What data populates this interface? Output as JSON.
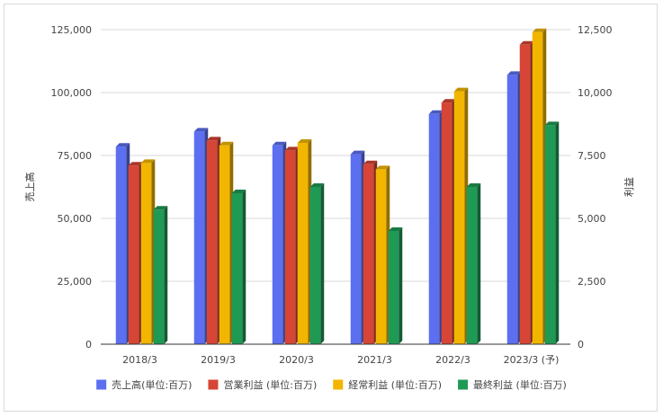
{
  "chart_data": {
    "type": "bar",
    "subtype": "3d-grouped-dual-axis",
    "categories": [
      "2018/3",
      "2019/3",
      "2020/3",
      "2021/3",
      "2022/3",
      "2023/3 (予)"
    ],
    "y_left_label": "売上高",
    "y_right_label": "利益",
    "y_left_lim": [
      0,
      125000
    ],
    "y_right_lim": [
      0,
      12500
    ],
    "y_left_ticks": [
      "0",
      "25,000",
      "50,000",
      "75,000",
      "100,000",
      "125,000"
    ],
    "y_right_ticks": [
      "0",
      "2,500",
      "5,000",
      "7,500",
      "10,000",
      "12,500"
    ],
    "grid": true,
    "legend_position": "bottom",
    "series": [
      {
        "name": "売上高(単位:百万)",
        "axis": "left",
        "color": "#5b6ff0",
        "values": [
          78500,
          84500,
          79000,
          75500,
          91500,
          107000
        ]
      },
      {
        "name": "営業利益 (単位:百万)",
        "axis": "right",
        "color": "#d64535",
        "values": [
          7100,
          8100,
          7700,
          7150,
          9600,
          11900
        ]
      },
      {
        "name": "経常利益 (単位:百万)",
        "axis": "right",
        "color": "#f2b600",
        "values": [
          7200,
          7900,
          8000,
          6950,
          10050,
          12400
        ]
      },
      {
        "name": "最終利益 (単位:百万)",
        "axis": "right",
        "color": "#1f9a55",
        "values": [
          5350,
          6000,
          6250,
          4500,
          6250,
          8700
        ]
      }
    ]
  }
}
